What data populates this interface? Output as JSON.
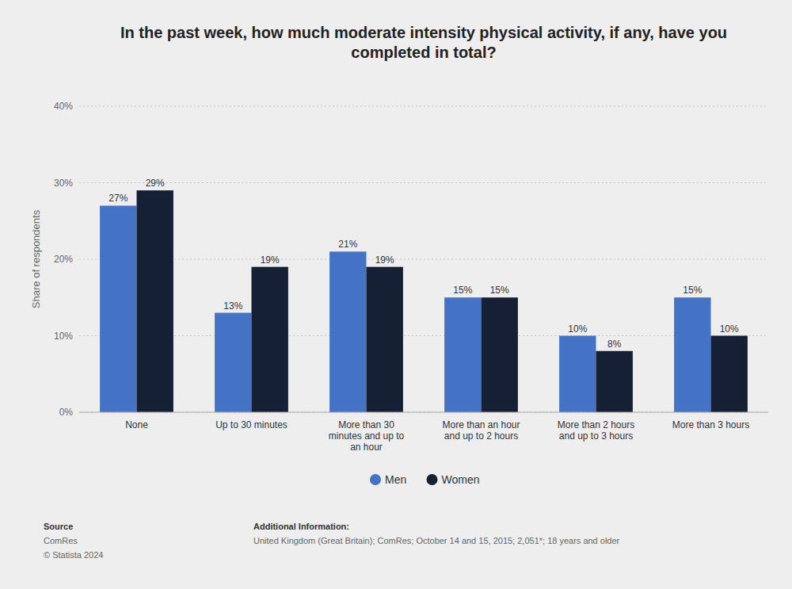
{
  "chart_data": {
    "type": "bar",
    "title": "In the past week, how much moderate intensity physical activity, if any, have you\ncompleted in total?",
    "categories": [
      "None",
      "Up to 30 minutes",
      "More than 30\nminutes and up to\nan hour",
      "More than an hour\nand up to 2 hours",
      "More than 2 hours\nand up to 3 hours",
      "More than 3 hours"
    ],
    "series": [
      {
        "name": "Men",
        "color": "#4472C4",
        "values": [
          27,
          13,
          21,
          15,
          10,
          15
        ],
        "value_labels": [
          "27%",
          "13%",
          "21%",
          "15%",
          "10%",
          "15%"
        ]
      },
      {
        "name": "Women",
        "color": "#152035",
        "values": [
          29,
          19,
          19,
          15,
          8,
          10
        ],
        "value_labels": [
          "29%",
          "19%",
          "19%",
          "15%",
          "8%",
          "10%"
        ]
      }
    ],
    "y_label": "Share of respondents",
    "ylim": [
      0,
      40
    ],
    "yticks": [
      {
        "value": 0,
        "label": "0%"
      },
      {
        "value": 10,
        "label": "10%"
      },
      {
        "value": 20,
        "label": "20%"
      },
      {
        "value": 30,
        "label": "30%"
      },
      {
        "value": 40,
        "label": "40%"
      }
    ],
    "grid": true,
    "legend": "bottom",
    "data_labels": true,
    "annotations": [
      "Source",
      "ComRes\n© Statista 2024",
      "Additional Information:",
      "United Kingdom (Great Britain); ComRes; October 14 and 15, 2015; 2,051*; 18 years and older"
    ]
  }
}
